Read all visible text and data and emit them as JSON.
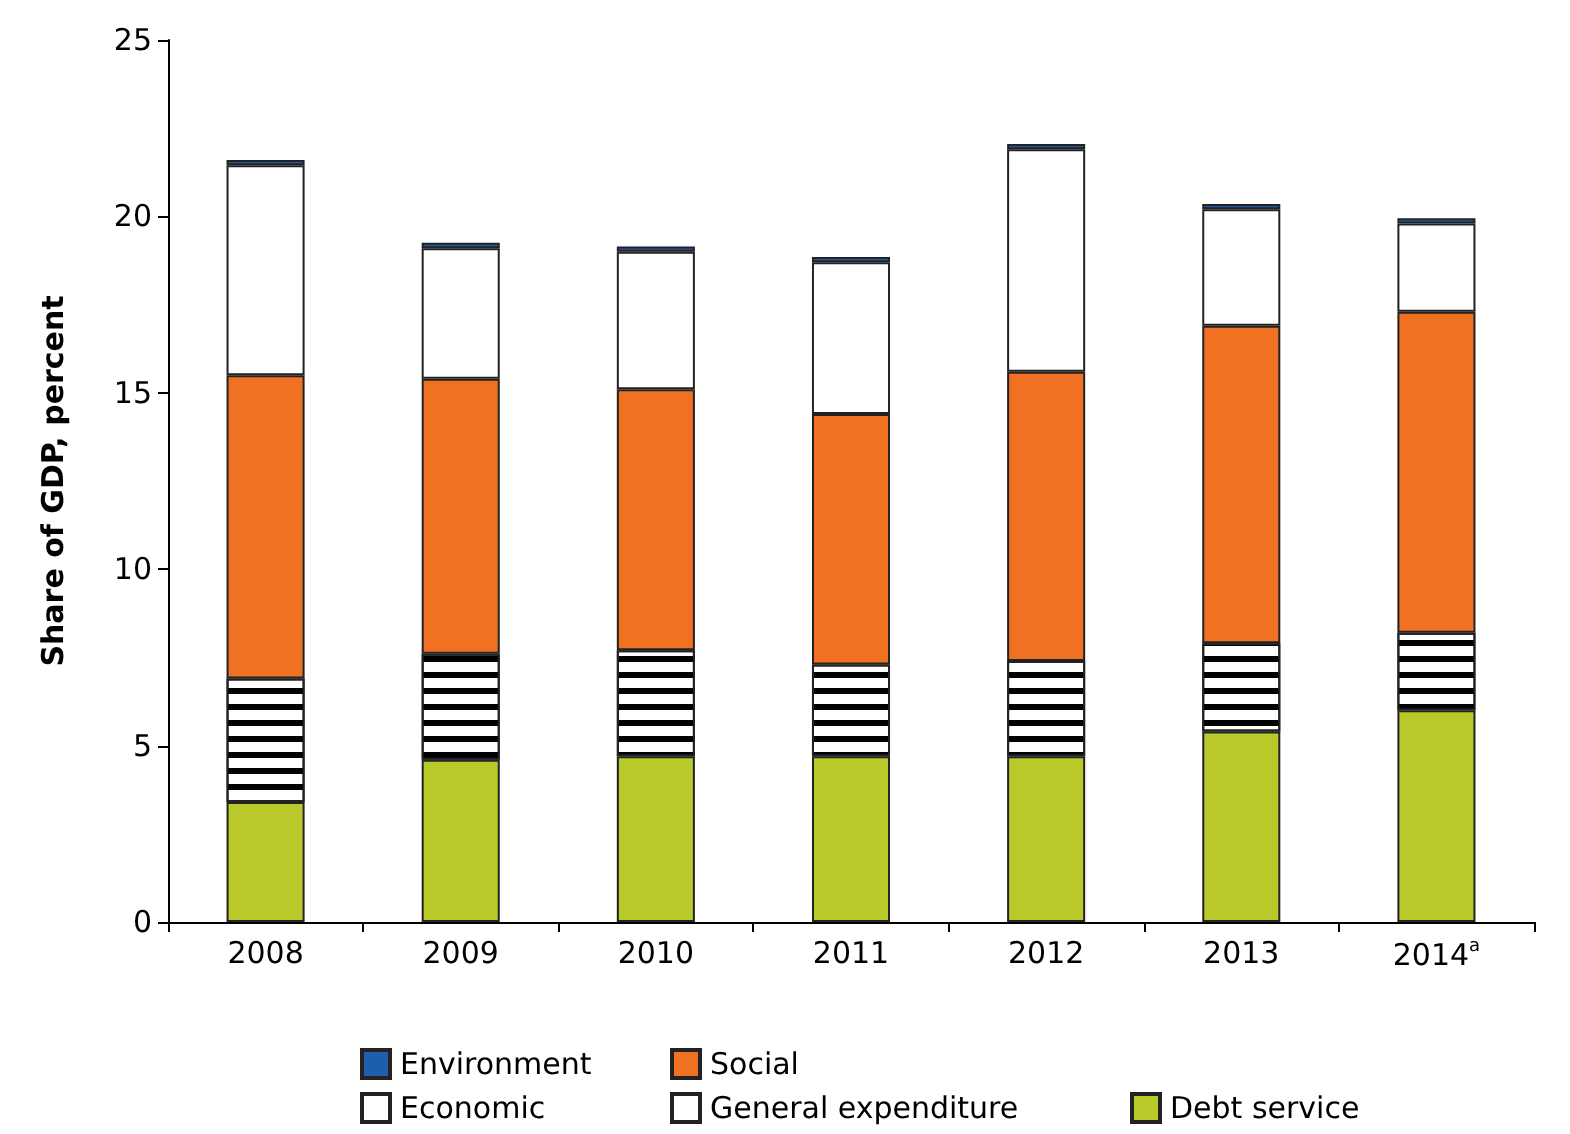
{
  "chart_data": {
    "type": "bar",
    "stacked": true,
    "ylabel": "Share of GDP, percent",
    "categories": [
      "2008",
      "2009",
      "2010",
      "2011",
      "2012",
      "2013",
      "2014$^{a}$"
    ],
    "series": [
      {
        "name": "Debt service",
        "color": "#bac92a",
        "values": [
          3.4,
          4.6,
          4.7,
          4.7,
          4.7,
          5.4,
          6.0
        ]
      },
      {
        "name": "General expenditure",
        "color": "#ffffff",
        "values": [
          3.5,
          3.0,
          3.0,
          2.6,
          2.7,
          2.5,
          2.2
        ]
      },
      {
        "name": "Social",
        "color": "#f07122",
        "values": [
          8.6,
          7.8,
          7.4,
          7.1,
          8.2,
          9.0,
          9.1
        ]
      },
      {
        "name": "Economic",
        "color": "#ffffff",
        "values": [
          5.95,
          3.7,
          3.9,
          4.3,
          6.3,
          3.3,
          2.5
        ]
      },
      {
        "name": "Environment",
        "color": "#1c5faa",
        "values": [
          0.15,
          0.15,
          0.15,
          0.15,
          0.15,
          0.15,
          0.15
        ]
      }
    ],
    "ylim": [
      0,
      25
    ],
    "yticks": [
      0,
      5,
      10,
      15,
      20,
      25
    ],
    "grid": false,
    "legend": "bottom"
  }
}
